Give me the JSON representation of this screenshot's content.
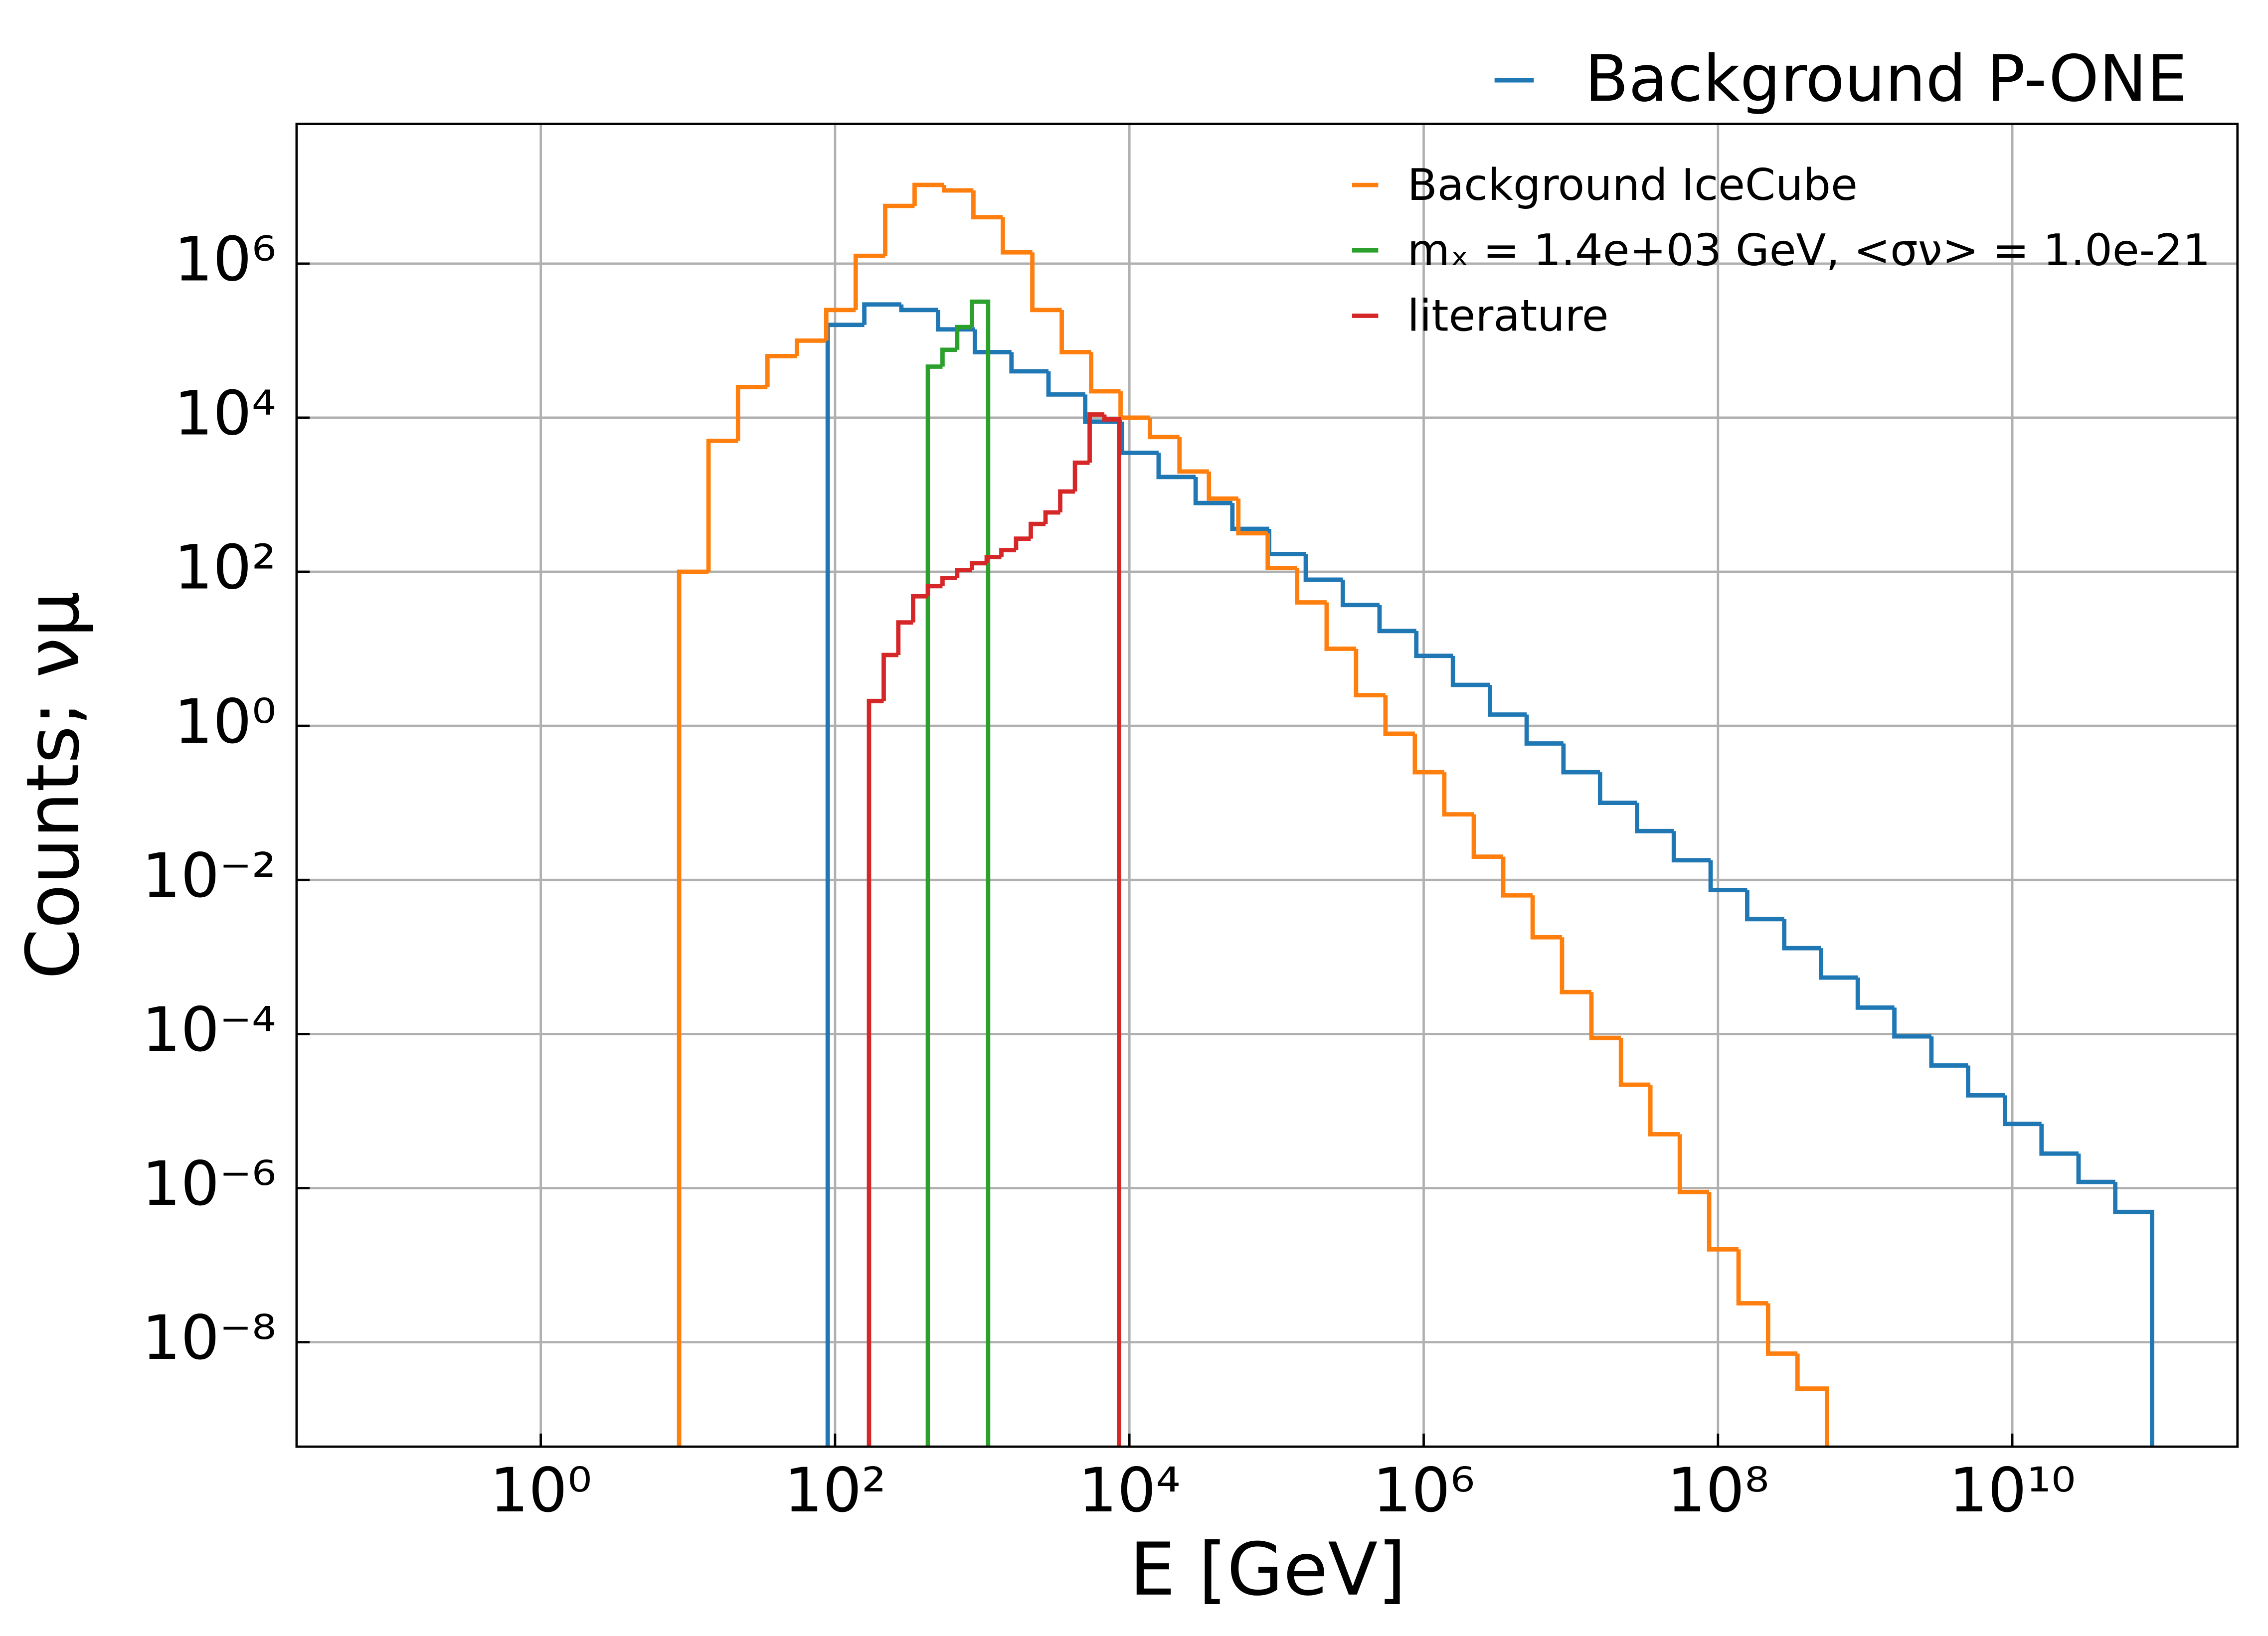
{
  "chart_data": {
    "type": "histogram",
    "xlabel": "E [GeV]",
    "ylabel": "Counts;  νμ",
    "xscale": "log",
    "yscale": "log",
    "grid": true,
    "legend": "upper right",
    "xlim": [
      0.0219,
      339000000000.0
    ],
    "ylim": [
      4.4e-10,
      65000000.0
    ],
    "xticks": [
      {
        "value": 1,
        "label": "10⁰"
      },
      {
        "value": 100,
        "label": "10²"
      },
      {
        "value": 10000.0,
        "label": "10⁴"
      },
      {
        "value": 1000000.0,
        "label": "10⁶"
      },
      {
        "value": 100000000.0,
        "label": "10⁸"
      },
      {
        "value": 10000000000.0,
        "label": "10¹⁰"
      }
    ],
    "yticks": [
      {
        "value": 1000000.0,
        "label": "10⁶"
      },
      {
        "value": 10000.0,
        "label": "10⁴"
      },
      {
        "value": 100,
        "label": "10²"
      },
      {
        "value": 1,
        "label": "10⁰"
      },
      {
        "value": 0.01,
        "label": "10⁻²"
      },
      {
        "value": 0.0001,
        "label": "10⁻⁴"
      },
      {
        "value": 1e-06,
        "label": "10⁻⁶"
      },
      {
        "value": 1e-08,
        "label": "10⁻⁸"
      }
    ],
    "series": [
      {
        "name": "Background P-ONE",
        "color": "#1f77b4",
        "bins": [
          89.1,
          158,
          282,
          501,
          891,
          1580.0,
          2820.0,
          5010.0,
          8910.0,
          15800.0,
          28200.0,
          50100.0,
          89100.0,
          158000.0,
          282000.0,
          501000.0,
          891000.0,
          1580000.0,
          2820000.0,
          5010000.0,
          8910000.0,
          15800000.0,
          28200000.0,
          50100000.0,
          89100000.0,
          158000000.0,
          282000000.0,
          501000000.0,
          891000000.0,
          1580000000.0,
          2820000000.0,
          5010000000.0,
          8910000000.0,
          15800000000.0,
          28200000000.0,
          50100000000.0,
          89100000000.0
        ],
        "values": [
          160000.0,
          295000.0,
          250000.0,
          140000.0,
          71000.0,
          40000.0,
          20000.0,
          8900.0,
          3500.0,
          1700.0,
          780,
          360,
          170,
          79,
          37,
          17,
          8.1,
          3.4,
          1.4,
          0.59,
          0.25,
          0.1,
          0.043,
          0.018,
          0.0074,
          0.0031,
          0.0013,
          0.00054,
          0.00022,
          9.3e-05,
          3.9e-05,
          1.6e-05,
          6.8e-06,
          2.8e-06,
          1.2e-06,
          4.9e-07
        ]
      },
      {
        "name": "Background IceCube",
        "color": "#ff7f0e",
        "bins": [
          8.71,
          13.8,
          21.9,
          34.7,
          55.0,
          87.1,
          138,
          219,
          347,
          550,
          871,
          1380.0,
          2190.0,
          3470.0,
          5500.0,
          8710.0,
          13800.0,
          21900.0,
          34700.0,
          55000.0,
          87100.0,
          138000.0,
          219000.0,
          347000.0,
          550000.0,
          871000.0,
          1380000.0,
          2190000.0,
          3470000.0,
          5500000.0,
          8710000.0,
          13800000.0,
          21900000.0,
          34700000.0,
          55000000.0,
          87100000.0,
          138000000.0,
          219000000.0,
          347000000.0,
          550000000.0
        ],
        "values": [
          100,
          5000.0,
          25000.0,
          63000.0,
          100000.0,
          250000.0,
          1260000.0,
          5600000.0,
          10500000.0,
          8900000.0,
          4000000.0,
          1400000.0,
          250000.0,
          71000.0,
          22000.0,
          10000.0,
          5600.0,
          2000.0,
          890,
          316,
          112,
          40,
          10,
          2.5,
          0.79,
          0.25,
          0.071,
          0.02,
          0.0063,
          0.0018,
          0.00035,
          8.9e-05,
          2.2e-05,
          5e-06,
          8.9e-07,
          1.6e-07,
          3.2e-08,
          7.1e-09,
          2.5e-09
        ]
      },
      {
        "name": "mₓ = 1.4e+03 GeV, <σν> = 1.0e-21",
        "color": "#2ca02c",
        "bins": [
          427,
          537,
          676,
          851,
          1096
        ],
        "values": [
          46000.0,
          76000.0,
          150000.0,
          320000.0
        ]
      },
      {
        "name": "literature",
        "color": "#d62728",
        "bins": [
          170,
          214,
          269,
          339,
          427,
          537,
          676,
          851,
          1072,
          1349,
          1698,
          2138,
          2692,
          3388,
          4266,
          5370,
          6761,
          8511
        ],
        "values": [
          2.1,
          8.3,
          22,
          48,
          65,
          83,
          105,
          129,
          155,
          191,
          269,
          417,
          589,
          1100,
          2600,
          11000.0,
          9500.0
        ]
      }
    ]
  }
}
